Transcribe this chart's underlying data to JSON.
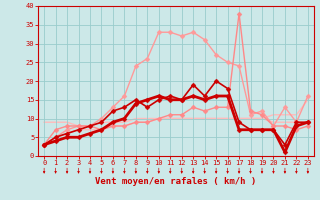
{
  "xlabel": "Vent moyen/en rafales ( km/h )",
  "background_color": "#cce8e8",
  "grid_color": "#99cccc",
  "xlim": [
    -0.5,
    23.5
  ],
  "ylim": [
    0,
    40
  ],
  "yticks": [
    0,
    5,
    10,
    15,
    20,
    25,
    30,
    35,
    40
  ],
  "xticks": [
    0,
    1,
    2,
    3,
    4,
    5,
    6,
    7,
    8,
    9,
    10,
    11,
    12,
    13,
    14,
    15,
    16,
    17,
    18,
    19,
    20,
    21,
    22,
    23
  ],
  "lines": [
    {
      "label": "line_flat_high",
      "y": [
        9,
        9,
        9,
        8,
        8,
        9,
        9,
        9,
        10,
        10,
        10,
        10,
        10,
        10,
        10,
        10,
        10,
        10,
        10,
        10,
        11,
        11,
        11,
        15
      ],
      "color": "#ffbbbb",
      "lw": 1.0,
      "marker": null,
      "zorder": 1
    },
    {
      "label": "line_flat_low",
      "y": [
        3,
        5,
        6,
        7,
        7,
        7,
        8,
        8,
        9,
        9,
        10,
        10,
        10,
        10,
        10,
        10,
        10,
        10,
        10,
        10,
        9,
        9,
        9,
        9
      ],
      "color": "#ffbbbb",
      "lw": 1.0,
      "marker": null,
      "zorder": 1
    },
    {
      "label": "rafales_high",
      "y": [
        3,
        5,
        7,
        8,
        8,
        10,
        13,
        16,
        24,
        26,
        33,
        33,
        32,
        33,
        31,
        27,
        25,
        24,
        11,
        12,
        8,
        13,
        9,
        16
      ],
      "color": "#ff9999",
      "lw": 1.0,
      "marker": "D",
      "markersize": 2.5,
      "zorder": 2
    },
    {
      "label": "rafales_mid",
      "y": [
        3,
        7,
        8,
        8,
        8,
        7,
        8,
        8,
        9,
        9,
        10,
        11,
        11,
        13,
        12,
        13,
        13,
        38,
        12,
        11,
        8,
        8,
        7,
        8
      ],
      "color": "#ff8888",
      "lw": 1.0,
      "marker": "D",
      "markersize": 2.5,
      "zorder": 2
    },
    {
      "label": "moyen_upper",
      "y": [
        3,
        5,
        6,
        7,
        8,
        9,
        12,
        13,
        15,
        13,
        15,
        16,
        15,
        19,
        16,
        20,
        18,
        9,
        7,
        7,
        7,
        3,
        9,
        9
      ],
      "color": "#cc0000",
      "lw": 1.2,
      "marker": "D",
      "markersize": 2.5,
      "zorder": 3
    },
    {
      "label": "moyen_lower",
      "y": [
        3,
        4,
        5,
        5,
        6,
        7,
        9,
        10,
        14,
        15,
        16,
        15,
        15,
        16,
        15,
        16,
        16,
        7,
        7,
        7,
        7,
        1,
        8,
        9
      ],
      "color": "#cc0000",
      "lw": 2.0,
      "marker": "D",
      "markersize": 2.5,
      "zorder": 3
    }
  ],
  "arrow_color": "#cc0000",
  "tick_color": "#cc0000",
  "tick_fontsize": 5,
  "xlabel_fontsize": 6.5
}
